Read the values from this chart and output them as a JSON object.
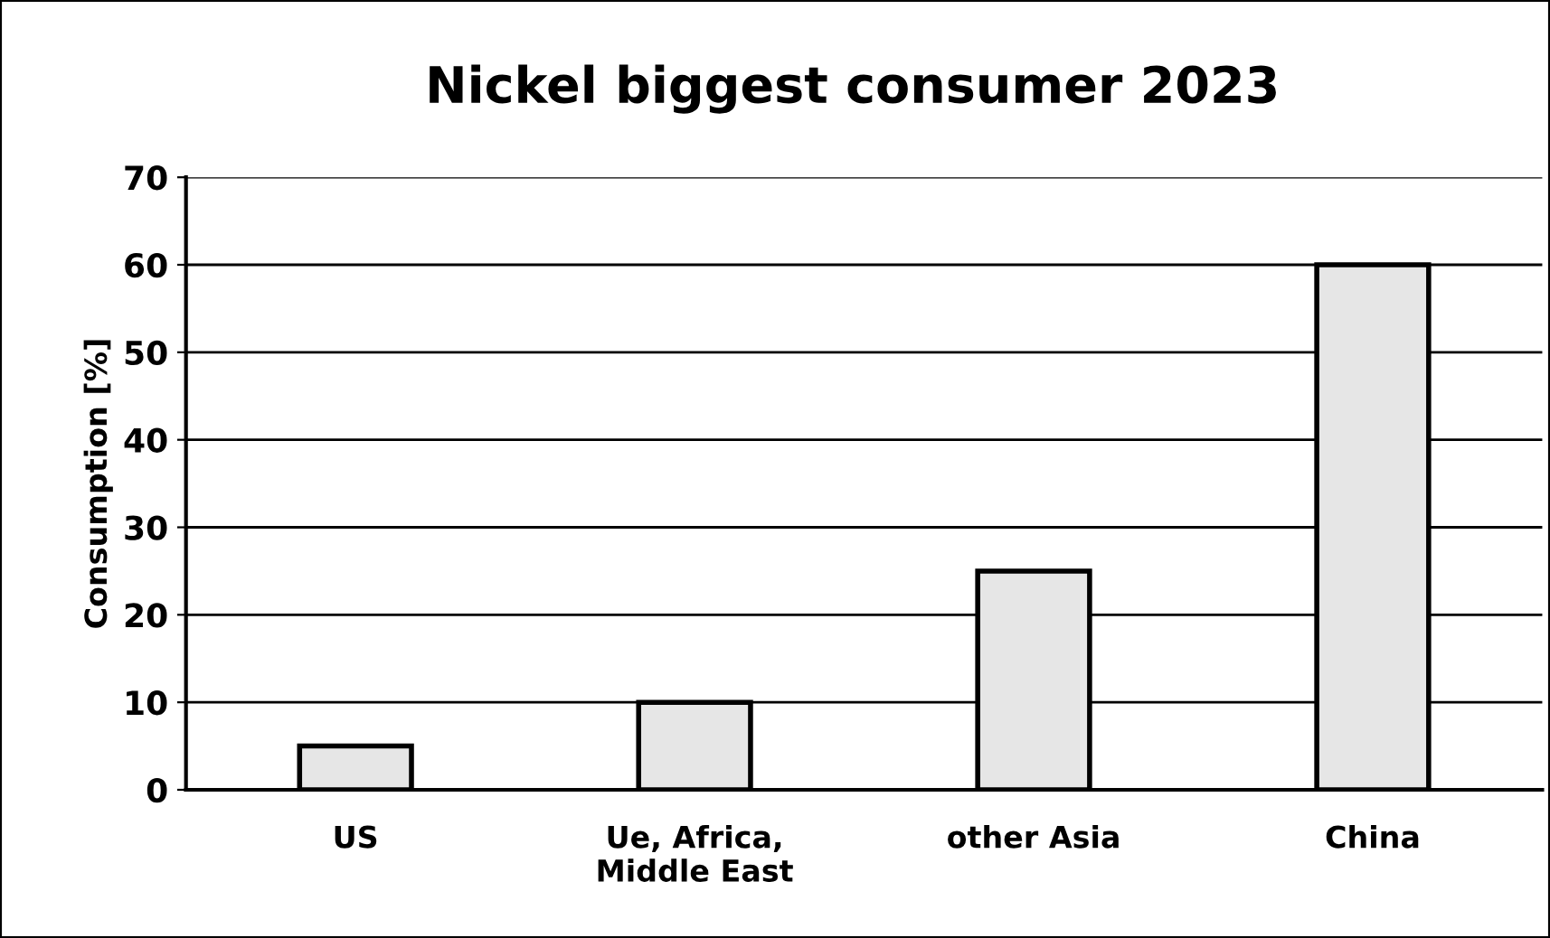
{
  "chart_data": {
    "type": "bar",
    "title": "Nickel biggest consumer 2023",
    "ylabel": "Consumption [%]",
    "categories": [
      "US",
      "Ue, Africa,\nMiddle East",
      "other Asia",
      "China"
    ],
    "values": [
      5,
      10,
      25,
      60
    ],
    "color": "#e6e6e6",
    "ylim": [
      0,
      70
    ],
    "yticks": [
      0,
      10,
      20,
      30,
      40,
      50,
      60,
      70
    ],
    "grid": "y"
  }
}
